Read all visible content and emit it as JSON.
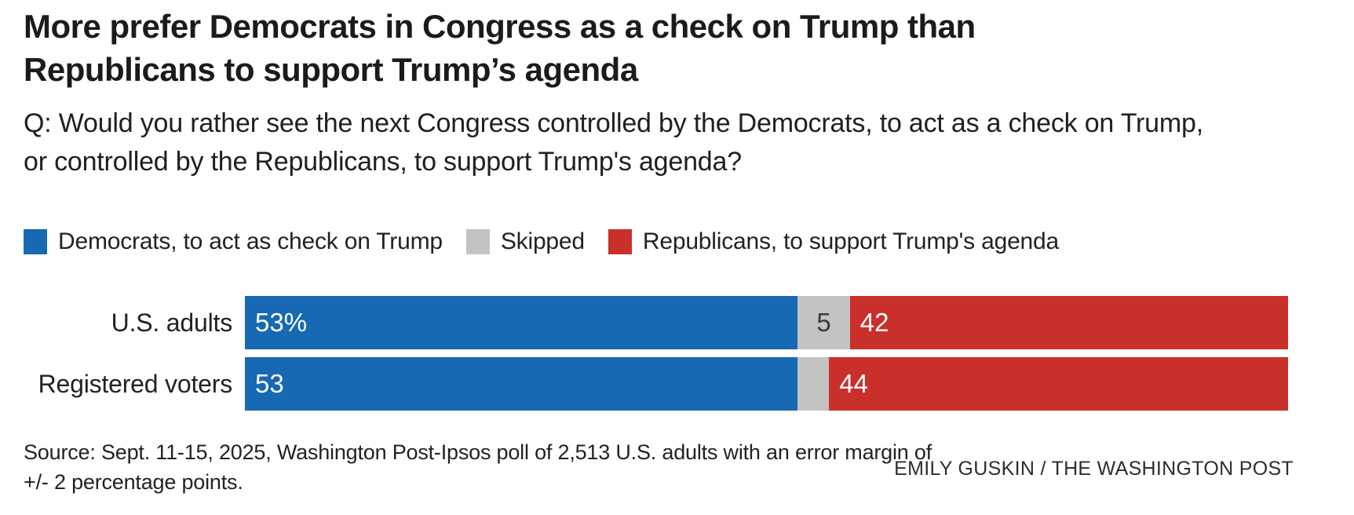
{
  "title": "More prefer Democrats in Congress as a check on Trump than Republicans to support Trump’s agenda",
  "question": "Q: Would you rather see the next Congress controlled by the Democrats, to act as a check on Trump, or controlled by the Republicans, to support Trump's agenda?",
  "legend": {
    "items": [
      {
        "label": "Democrats, to act as check on Trump",
        "color": "#1669b2"
      },
      {
        "label": "Skipped",
        "color": "#c3c3c3"
      },
      {
        "label": "Republicans, to support Trump's agenda",
        "color": "#c9302c"
      }
    ]
  },
  "chart_data": {
    "type": "bar",
    "subtype": "horizontal-stacked",
    "title": "More prefer Democrats in Congress as a check on Trump than Republicans to support Trump’s agenda",
    "categories": [
      "U.S. adults",
      "Registered voters"
    ],
    "series": [
      {
        "name": "Democrats, to act as check on Trump",
        "color": "#1669b2",
        "values": [
          53,
          53
        ],
        "labels": [
          "53%",
          "53"
        ]
      },
      {
        "name": "Skipped",
        "color": "#c3c3c3",
        "values": [
          5,
          3
        ],
        "labels": [
          "5",
          ""
        ]
      },
      {
        "name": "Republicans, to support Trump's agenda",
        "color": "#c9302c",
        "values": [
          42,
          44
        ],
        "labels": [
          "42",
          "44"
        ]
      }
    ],
    "xlim": [
      0,
      100
    ],
    "legend_position": "top",
    "grid": false,
    "value_labels": "inside-start"
  },
  "source": "Source: Sept. 11-15, 2025, Washington Post-Ipsos poll of 2,513 U.S. adults with an error margin of +/- 2 percentage points.",
  "byline": "EMILY GUSKIN / THE WASHINGTON POST"
}
